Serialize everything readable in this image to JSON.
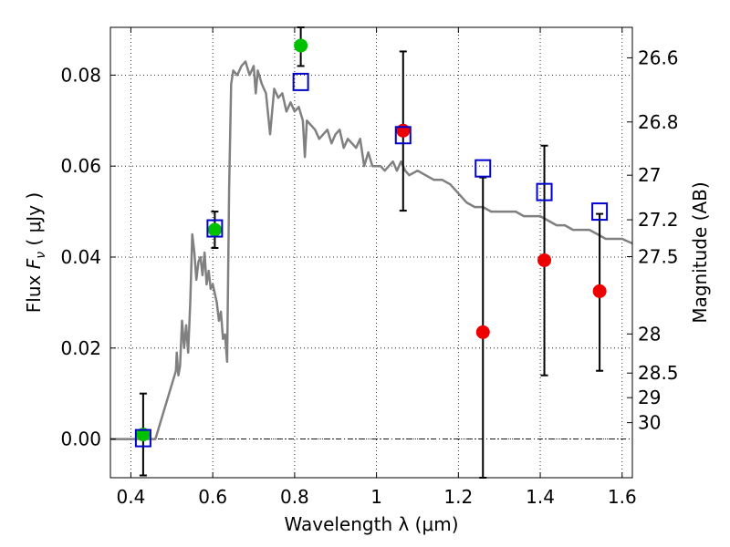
{
  "chart_data": {
    "type": "scatter",
    "title": "",
    "xlabel": "Wavelength  λ (μm)",
    "ylabel_left": {
      "prefix": "Flux  ",
      "symbol": "F",
      "subscript": "ν",
      "units": "  ( μJy )"
    },
    "ylabel_right": "Magnitude (AB)",
    "xlim": [
      0.35,
      1.625
    ],
    "ylim": [
      -0.0085,
      0.0905
    ],
    "grid": true,
    "x_ticks": [
      {
        "value": 0.4,
        "label": "0.4"
      },
      {
        "value": 0.6,
        "label": "0.6"
      },
      {
        "value": 0.8,
        "label": "0.8"
      },
      {
        "value": 1.0,
        "label": "1"
      },
      {
        "value": 1.2,
        "label": "1.2"
      },
      {
        "value": 1.4,
        "label": "1.4"
      },
      {
        "value": 1.6,
        "label": "1.6"
      }
    ],
    "y_ticks": [
      {
        "value": 0.0,
        "label": "0.00"
      },
      {
        "value": 0.02,
        "label": "0.02"
      },
      {
        "value": 0.04,
        "label": "0.04"
      },
      {
        "value": 0.06,
        "label": "0.06"
      },
      {
        "value": 0.08,
        "label": "0.08"
      }
    ],
    "mag_ticks": [
      {
        "value": 0.0838,
        "label": "26.6"
      },
      {
        "value": 0.0697,
        "label": "26.8"
      },
      {
        "value": 0.058,
        "label": "27"
      },
      {
        "value": 0.0482,
        "label": "27.2"
      },
      {
        "value": 0.0401,
        "label": "27.5"
      },
      {
        "value": 0.0231,
        "label": "28"
      },
      {
        "value": 0.0145,
        "label": "28.5"
      },
      {
        "value": 0.0091,
        "label": "29"
      },
      {
        "value": 0.0036,
        "label": "30"
      }
    ],
    "reference_line": {
      "y": 0.0,
      "style": "dash-dot"
    },
    "model_spectrum": {
      "name": "model SED",
      "color": "#808080",
      "points": [
        [
          0.35,
          0.0
        ],
        [
          0.46,
          0.0
        ],
        [
          0.47,
          0.003
        ],
        [
          0.49,
          0.009
        ],
        [
          0.51,
          0.015
        ],
        [
          0.512,
          0.019
        ],
        [
          0.516,
          0.014
        ],
        [
          0.52,
          0.016
        ],
        [
          0.525,
          0.026
        ],
        [
          0.53,
          0.02
        ],
        [
          0.535,
          0.025
        ],
        [
          0.54,
          0.019
        ],
        [
          0.545,
          0.03
        ],
        [
          0.55,
          0.045
        ],
        [
          0.555,
          0.041
        ],
        [
          0.56,
          0.035
        ],
        [
          0.565,
          0.039
        ],
        [
          0.57,
          0.04
        ],
        [
          0.575,
          0.036
        ],
        [
          0.58,
          0.041
        ],
        [
          0.585,
          0.034
        ],
        [
          0.59,
          0.037
        ],
        [
          0.595,
          0.033
        ],
        [
          0.6,
          0.034
        ],
        [
          0.61,
          0.03
        ],
        [
          0.615,
          0.026
        ],
        [
          0.62,
          0.028
        ],
        [
          0.625,
          0.022
        ],
        [
          0.63,
          0.023
        ],
        [
          0.635,
          0.017
        ],
        [
          0.64,
          0.055
        ],
        [
          0.645,
          0.078
        ],
        [
          0.65,
          0.081
        ],
        [
          0.66,
          0.08
        ],
        [
          0.67,
          0.082
        ],
        [
          0.68,
          0.083
        ],
        [
          0.69,
          0.08
        ],
        [
          0.7,
          0.082
        ],
        [
          0.705,
          0.076
        ],
        [
          0.71,
          0.081
        ],
        [
          0.72,
          0.078
        ],
        [
          0.73,
          0.076
        ],
        [
          0.74,
          0.067
        ],
        [
          0.75,
          0.077
        ],
        [
          0.76,
          0.075
        ],
        [
          0.77,
          0.076
        ],
        [
          0.78,
          0.072
        ],
        [
          0.79,
          0.074
        ],
        [
          0.8,
          0.072
        ],
        [
          0.81,
          0.073
        ],
        [
          0.82,
          0.07
        ],
        [
          0.825,
          0.062
        ],
        [
          0.83,
          0.07
        ],
        [
          0.84,
          0.069
        ],
        [
          0.85,
          0.068
        ],
        [
          0.86,
          0.066
        ],
        [
          0.87,
          0.067
        ],
        [
          0.88,
          0.068
        ],
        [
          0.89,
          0.065
        ],
        [
          0.9,
          0.067
        ],
        [
          0.91,
          0.068
        ],
        [
          0.92,
          0.064
        ],
        [
          0.93,
          0.066
        ],
        [
          0.94,
          0.065
        ],
        [
          0.95,
          0.064
        ],
        [
          0.96,
          0.066
        ],
        [
          0.97,
          0.06
        ],
        [
          0.98,
          0.063
        ],
        [
          0.99,
          0.06
        ],
        [
          1.0,
          0.06
        ],
        [
          1.01,
          0.06
        ],
        [
          1.02,
          0.059
        ],
        [
          1.03,
          0.06
        ],
        [
          1.04,
          0.061
        ],
        [
          1.05,
          0.059
        ],
        [
          1.06,
          0.061
        ],
        [
          1.07,
          0.059
        ],
        [
          1.08,
          0.058
        ],
        [
          1.1,
          0.059
        ],
        [
          1.12,
          0.058
        ],
        [
          1.14,
          0.057
        ],
        [
          1.16,
          0.057
        ],
        [
          1.18,
          0.056
        ],
        [
          1.2,
          0.054
        ],
        [
          1.22,
          0.052
        ],
        [
          1.24,
          0.051
        ],
        [
          1.26,
          0.051
        ],
        [
          1.28,
          0.05
        ],
        [
          1.3,
          0.05
        ],
        [
          1.32,
          0.05
        ],
        [
          1.34,
          0.05
        ],
        [
          1.36,
          0.049
        ],
        [
          1.38,
          0.049
        ],
        [
          1.4,
          0.049
        ],
        [
          1.42,
          0.048
        ],
        [
          1.44,
          0.047
        ],
        [
          1.46,
          0.047
        ],
        [
          1.48,
          0.046
        ],
        [
          1.5,
          0.046
        ],
        [
          1.52,
          0.046
        ],
        [
          1.54,
          0.045
        ],
        [
          1.56,
          0.044
        ],
        [
          1.58,
          0.044
        ],
        [
          1.6,
          0.044
        ],
        [
          1.625,
          0.043
        ]
      ]
    },
    "series": [
      {
        "name": "green detections",
        "marker": "circle",
        "color": "#00c000",
        "points": [
          {
            "x": 0.43,
            "y": 0.001
          },
          {
            "x": 0.605,
            "y": 0.046
          },
          {
            "x": 0.815,
            "y": 0.0865
          }
        ]
      },
      {
        "name": "red detections",
        "marker": "circle",
        "color": "#ee0000",
        "points": [
          {
            "x": 1.065,
            "y": 0.0678
          },
          {
            "x": 1.26,
            "y": 0.0235
          },
          {
            "x": 1.41,
            "y": 0.0393
          },
          {
            "x": 1.545,
            "y": 0.0325
          }
        ]
      },
      {
        "name": "model photometry",
        "marker": "square-open",
        "color": "#0000cc",
        "points": [
          {
            "x": 0.43,
            "y": 0.0002
          },
          {
            "x": 0.605,
            "y": 0.0463
          },
          {
            "x": 0.815,
            "y": 0.0785
          },
          {
            "x": 1.065,
            "y": 0.0668
          },
          {
            "x": 1.26,
            "y": 0.0595
          },
          {
            "x": 1.41,
            "y": 0.0543
          },
          {
            "x": 1.545,
            "y": 0.05
          }
        ]
      }
    ],
    "error_bars": [
      {
        "x": 0.43,
        "low": -0.008,
        "high": 0.01
      },
      {
        "x": 0.605,
        "low": 0.042,
        "high": 0.05
      },
      {
        "x": 0.815,
        "low": 0.082,
        "high": 0.0905
      },
      {
        "x": 1.065,
        "low": 0.0502,
        "high": 0.0852
      },
      {
        "x": 1.26,
        "low": -0.0085,
        "high": 0.0575
      },
      {
        "x": 1.41,
        "low": 0.014,
        "high": 0.0645
      },
      {
        "x": 1.545,
        "low": 0.015,
        "high": 0.0495
      }
    ]
  }
}
